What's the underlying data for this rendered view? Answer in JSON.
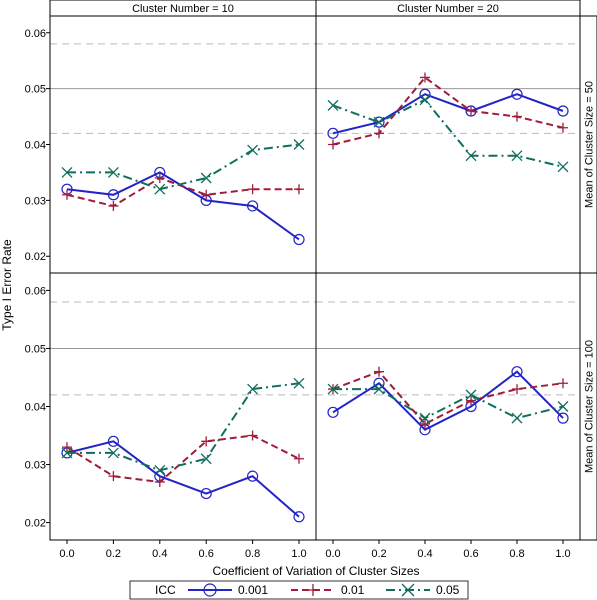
{
  "chart_data": {
    "type": "line",
    "ylabel": "Type I Error Rate",
    "xlabel": "Coefficient of Variation of Cluster Sizes",
    "x": [
      0.0,
      0.2,
      0.4,
      0.6,
      0.8,
      1.0
    ],
    "x_tick_labels": [
      "0.0",
      "0.2",
      "0.4",
      "0.6",
      "0.8",
      "1.0"
    ],
    "y_ticks": [
      0.02,
      0.03,
      0.04,
      0.05,
      0.06
    ],
    "y_tick_labels": [
      "0.02",
      "0.03",
      "0.04",
      "0.05",
      "0.06"
    ],
    "ylim": [
      0.017,
      0.063
    ],
    "reference_lines": {
      "solid": 0.05,
      "dashed": [
        0.042,
        0.058
      ]
    },
    "column_strips": [
      "Cluster Number = 10",
      "Cluster Number = 20"
    ],
    "row_strips": [
      "Mean of Cluster Size = 50",
      "Mean of Cluster Size = 100"
    ],
    "legend": {
      "title": "ICC",
      "position": "bottom",
      "items": [
        {
          "label": "0.001",
          "color": "#2323c8",
          "marker": "circle",
          "line": "solid"
        },
        {
          "label": "0.01",
          "color": "#a01d3a",
          "marker": "plus",
          "line": "dashed"
        },
        {
          "label": "0.05",
          "color": "#0f6e5e",
          "marker": "x",
          "line": "dashdot"
        }
      ]
    },
    "panels": [
      {
        "column": "Cluster Number = 10",
        "row": "Mean of Cluster Size = 50",
        "series": [
          {
            "name": "0.001",
            "values": [
              0.032,
              0.031,
              0.035,
              0.03,
              0.029,
              0.023
            ]
          },
          {
            "name": "0.01",
            "values": [
              0.031,
              0.029,
              0.034,
              0.031,
              0.032,
              0.032
            ]
          },
          {
            "name": "0.05",
            "values": [
              0.035,
              0.035,
              0.032,
              0.034,
              0.039,
              0.04
            ]
          }
        ]
      },
      {
        "column": "Cluster Number = 20",
        "row": "Mean of Cluster Size = 50",
        "series": [
          {
            "name": "0.001",
            "values": [
              0.042,
              0.044,
              0.049,
              0.046,
              0.049,
              0.046
            ]
          },
          {
            "name": "0.01",
            "values": [
              0.04,
              0.042,
              0.052,
              0.046,
              0.045,
              0.043
            ]
          },
          {
            "name": "0.05",
            "values": [
              0.047,
              0.044,
              0.048,
              0.038,
              0.038,
              0.036
            ]
          }
        ]
      },
      {
        "column": "Cluster Number = 10",
        "row": "Mean of Cluster Size = 100",
        "series": [
          {
            "name": "0.001",
            "values": [
              0.032,
              0.034,
              0.028,
              0.025,
              0.028,
              0.021
            ]
          },
          {
            "name": "0.01",
            "values": [
              0.033,
              0.028,
              0.027,
              0.034,
              0.035,
              0.031
            ]
          },
          {
            "name": "0.05",
            "values": [
              0.032,
              0.032,
              0.029,
              0.031,
              0.043,
              0.044
            ]
          }
        ]
      },
      {
        "column": "Cluster Number = 20",
        "row": "Mean of Cluster Size = 100",
        "series": [
          {
            "name": "0.001",
            "values": [
              0.039,
              0.044,
              0.036,
              0.04,
              0.046,
              0.038
            ]
          },
          {
            "name": "0.01",
            "values": [
              0.043,
              0.046,
              0.037,
              0.041,
              0.043,
              0.044
            ]
          },
          {
            "name": "0.05",
            "values": [
              0.043,
              0.043,
              0.038,
              0.042,
              0.038,
              0.04
            ]
          }
        ]
      }
    ]
  }
}
